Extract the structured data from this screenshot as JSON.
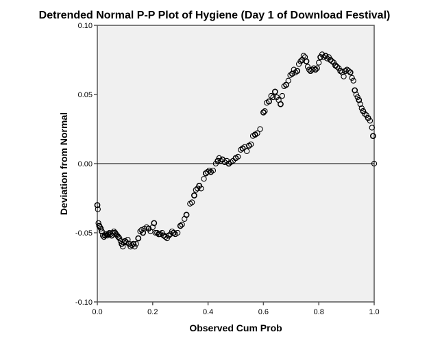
{
  "chart_data": {
    "type": "scatter",
    "title": "Detrended Normal P-P Plot of Hygiene (Day 1 of Download Festival)",
    "xlabel": "Observed Cum Prob",
    "ylabel": "Deviation from Normal",
    "xlim": [
      0.0,
      1.0
    ],
    "ylim": [
      -0.1,
      0.1
    ],
    "xticks": [
      "0.0",
      "0.2",
      "0.4",
      "0.6",
      "0.8",
      "1.0"
    ],
    "yticks": [
      "-0.10",
      "-0.05",
      "0.00",
      "0.05",
      "0.10"
    ],
    "reference_line_y": 0.0,
    "grid": false,
    "legend": "none",
    "marker": "open-circle",
    "colors": {
      "plot_background": "#f0f0f0",
      "marker": "#000000",
      "axis": "#555555",
      "reference_line": "#000000"
    },
    "points": [
      [
        0.0,
        -0.03
      ],
      [
        0.002,
        -0.033
      ],
      [
        0.004,
        -0.043
      ],
      [
        0.007,
        -0.045
      ],
      [
        0.01,
        -0.046
      ],
      [
        0.013,
        -0.047
      ],
      [
        0.016,
        -0.049
      ],
      [
        0.02,
        -0.052
      ],
      [
        0.024,
        -0.053
      ],
      [
        0.028,
        -0.052
      ],
      [
        0.032,
        -0.051
      ],
      [
        0.036,
        -0.052
      ],
      [
        0.04,
        -0.051
      ],
      [
        0.044,
        -0.05
      ],
      [
        0.048,
        -0.051
      ],
      [
        0.052,
        -0.052
      ],
      [
        0.056,
        -0.05
      ],
      [
        0.06,
        -0.049
      ],
      [
        0.064,
        -0.05
      ],
      [
        0.068,
        -0.051
      ],
      [
        0.072,
        -0.052
      ],
      [
        0.076,
        -0.053
      ],
      [
        0.08,
        -0.054
      ],
      [
        0.084,
        -0.056
      ],
      [
        0.088,
        -0.058
      ],
      [
        0.092,
        -0.06
      ],
      [
        0.096,
        -0.057
      ],
      [
        0.1,
        -0.056
      ],
      [
        0.105,
        -0.057
      ],
      [
        0.11,
        -0.055
      ],
      [
        0.115,
        -0.058
      ],
      [
        0.12,
        -0.06
      ],
      [
        0.125,
        -0.059
      ],
      [
        0.13,
        -0.058
      ],
      [
        0.135,
        -0.06
      ],
      [
        0.14,
        -0.058
      ],
      [
        0.148,
        -0.054
      ],
      [
        0.155,
        -0.049
      ],
      [
        0.16,
        -0.048
      ],
      [
        0.165,
        -0.05
      ],
      [
        0.17,
        -0.047
      ],
      [
        0.178,
        -0.046
      ],
      [
        0.185,
        -0.047
      ],
      [
        0.192,
        -0.049
      ],
      [
        0.2,
        -0.046
      ],
      [
        0.205,
        -0.043
      ],
      [
        0.21,
        -0.05
      ],
      [
        0.216,
        -0.05
      ],
      [
        0.222,
        -0.051
      ],
      [
        0.228,
        -0.051
      ],
      [
        0.234,
        -0.05
      ],
      [
        0.24,
        -0.052
      ],
      [
        0.246,
        -0.053
      ],
      [
        0.252,
        -0.054
      ],
      [
        0.258,
        -0.052
      ],
      [
        0.264,
        -0.051
      ],
      [
        0.27,
        -0.049
      ],
      [
        0.276,
        -0.05
      ],
      [
        0.282,
        -0.051
      ],
      [
        0.29,
        -0.05
      ],
      [
        0.3,
        -0.045
      ],
      [
        0.306,
        -0.044
      ],
      [
        0.315,
        -0.04
      ],
      [
        0.322,
        -0.037
      ],
      [
        0.335,
        -0.029
      ],
      [
        0.342,
        -0.028
      ],
      [
        0.35,
        -0.023
      ],
      [
        0.356,
        -0.019
      ],
      [
        0.362,
        -0.018
      ],
      [
        0.368,
        -0.016
      ],
      [
        0.375,
        -0.018
      ],
      [
        0.385,
        -0.011
      ],
      [
        0.392,
        -0.007
      ],
      [
        0.398,
        -0.006
      ],
      [
        0.404,
        -0.005
      ],
      [
        0.41,
        -0.006
      ],
      [
        0.418,
        -0.005
      ],
      [
        0.428,
        0.0
      ],
      [
        0.435,
        0.002
      ],
      [
        0.44,
        0.004
      ],
      [
        0.446,
        0.002
      ],
      [
        0.452,
        0.003
      ],
      [
        0.46,
        0.001
      ],
      [
        0.468,
        0.002
      ],
      [
        0.475,
        0.0
      ],
      [
        0.482,
        0.001
      ],
      [
        0.49,
        0.002
      ],
      [
        0.5,
        0.004
      ],
      [
        0.508,
        0.005
      ],
      [
        0.518,
        0.01
      ],
      [
        0.525,
        0.011
      ],
      [
        0.532,
        0.012
      ],
      [
        0.54,
        0.009
      ],
      [
        0.548,
        0.013
      ],
      [
        0.555,
        0.014
      ],
      [
        0.562,
        0.02
      ],
      [
        0.57,
        0.021
      ],
      [
        0.578,
        0.022
      ],
      [
        0.588,
        0.025
      ],
      [
        0.6,
        0.037
      ],
      [
        0.605,
        0.038
      ],
      [
        0.612,
        0.044
      ],
      [
        0.62,
        0.045
      ],
      [
        0.628,
        0.049
      ],
      [
        0.635,
        0.048
      ],
      [
        0.642,
        0.052
      ],
      [
        0.648,
        0.048
      ],
      [
        0.655,
        0.046
      ],
      [
        0.662,
        0.043
      ],
      [
        0.668,
        0.049
      ],
      [
        0.675,
        0.056
      ],
      [
        0.682,
        0.057
      ],
      [
        0.69,
        0.06
      ],
      [
        0.697,
        0.064
      ],
      [
        0.704,
        0.065
      ],
      [
        0.71,
        0.068
      ],
      [
        0.716,
        0.066
      ],
      [
        0.722,
        0.067
      ],
      [
        0.728,
        0.072
      ],
      [
        0.734,
        0.074
      ],
      [
        0.74,
        0.075
      ],
      [
        0.745,
        0.078
      ],
      [
        0.75,
        0.077
      ],
      [
        0.755,
        0.074
      ],
      [
        0.76,
        0.07
      ],
      [
        0.765,
        0.068
      ],
      [
        0.77,
        0.067
      ],
      [
        0.776,
        0.068
      ],
      [
        0.782,
        0.069
      ],
      [
        0.788,
        0.068
      ],
      [
        0.794,
        0.069
      ],
      [
        0.8,
        0.073
      ],
      [
        0.806,
        0.077
      ],
      [
        0.812,
        0.079
      ],
      [
        0.818,
        0.077
      ],
      [
        0.824,
        0.078
      ],
      [
        0.83,
        0.076
      ],
      [
        0.836,
        0.077
      ],
      [
        0.842,
        0.075
      ],
      [
        0.848,
        0.074
      ],
      [
        0.854,
        0.073
      ],
      [
        0.86,
        0.071
      ],
      [
        0.866,
        0.07
      ],
      [
        0.872,
        0.069
      ],
      [
        0.878,
        0.067
      ],
      [
        0.884,
        0.066
      ],
      [
        0.89,
        0.063
      ],
      [
        0.896,
        0.067
      ],
      [
        0.902,
        0.068
      ],
      [
        0.908,
        0.067
      ],
      [
        0.914,
        0.066
      ],
      [
        0.92,
        0.062
      ],
      [
        0.925,
        0.06
      ],
      [
        0.93,
        0.053
      ],
      [
        0.935,
        0.05
      ],
      [
        0.94,
        0.048
      ],
      [
        0.945,
        0.046
      ],
      [
        0.95,
        0.043
      ],
      [
        0.955,
        0.04
      ],
      [
        0.96,
        0.038
      ],
      [
        0.966,
        0.036
      ],
      [
        0.972,
        0.035
      ],
      [
        0.978,
        0.033
      ],
      [
        0.985,
        0.031
      ],
      [
        0.992,
        0.026
      ],
      [
        0.996,
        0.02
      ],
      [
        1.0,
        0.0
      ]
    ]
  }
}
